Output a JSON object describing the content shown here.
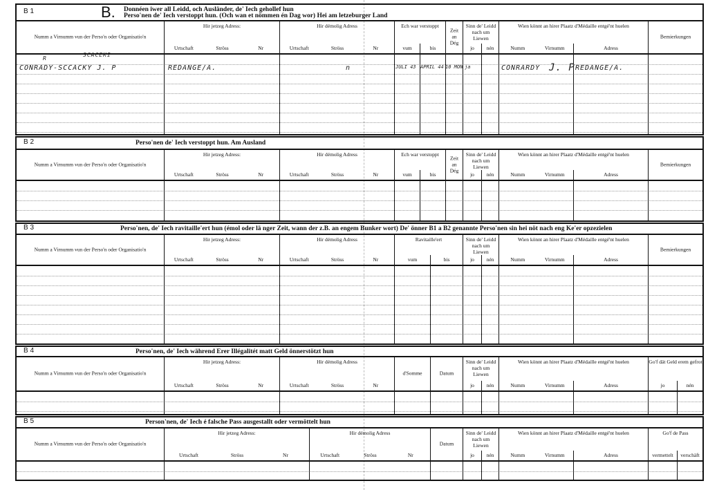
{
  "form": {
    "letter": "B."
  },
  "sections": [
    {
      "id": "B 1",
      "title_lines": [
        "Donnéen iwer all Leidd, och Ausländer, de' Iech gehollef hun",
        "Perso'nen de' Iech verstoppt hun. (Och wan et nömmen én Dag wor)    Hei am letzeburger Land"
      ],
      "columns": [
        {
          "label": "Numm a Virnumm vun der Perso'n oder Organisatio'n",
          "sub": []
        },
        {
          "label": "Hir jetzeg Adress:",
          "sub": [
            "Urtschaft",
            "Ströss",
            "Nr"
          ]
        },
        {
          "label": "Hir démolig Adress",
          "sub": [
            "Urtschaft",
            "Ströss",
            "Nr"
          ]
        },
        {
          "label": "Ech war verstoppt",
          "sub": [
            "vum",
            "bis"
          ]
        },
        {
          "label": "Zeit an Dég",
          "sub": []
        },
        {
          "label": "Sinn de' Leidd nach um Liewen",
          "sub": [
            "jo",
            "nén"
          ]
        },
        {
          "label": "Wien könnt an hirer Plaatz d'Médaille entgé'nt huelen",
          "sub": [
            "Numm",
            "Virnumm",
            "Adress"
          ]
        },
        {
          "label": "Bemierkungen",
          "sub": []
        }
      ],
      "entries": {
        "name": "CONRADY-SCCACKY J. P",
        "name_correction_letter": "R",
        "name_correction": "SCACEKI",
        "current_town": "REDANGE/A.",
        "former_address": "n",
        "hidden_from": "JULI 43",
        "hidden_until": "APRIL 44",
        "duration": "10 MON",
        "alive_yes": "ja",
        "medal_surname": "CONRARDY",
        "medal_firstname": "J. P",
        "medal_address": "REDANGE/A."
      }
    },
    {
      "id": "B 2",
      "title_lines": [
        "Perso'nen de' Iech verstoppt hun.                    Am Ausland"
      ],
      "columns": [
        {
          "label": "Numm a Virnumm vun der Perso'n oder Organisatio'n",
          "sub": []
        },
        {
          "label": "Hir jetzeg Adress:",
          "sub": [
            "Urtschaft",
            "Ströss",
            "Nr"
          ]
        },
        {
          "label": "Hir démolig Adress",
          "sub": [
            "Urtschaft",
            "Ströss",
            "Nr"
          ]
        },
        {
          "label": "Ech war verstoppt",
          "sub": [
            "vum",
            "bis"
          ]
        },
        {
          "label": "Zeit an Dég",
          "sub": []
        },
        {
          "label": "Sinn de' Leidd nach um Liewen",
          "sub": [
            "jo",
            "nén"
          ]
        },
        {
          "label": "Wien könnt an hirer Plaatz d'Médaille entgé'nt huelen",
          "sub": [
            "Numm",
            "Virnumm",
            "Adress"
          ]
        },
        {
          "label": "Bemierkungen",
          "sub": []
        }
      ]
    },
    {
      "id": "B 3",
      "title_lines": [
        "Perso'nen, de' Iech ravitaille'ert hun (émol oder lä nger Zeit, wann der z.B. an engem Bunker wort)   De' önner B1 a B2 genannte Perso'nen sin hei nöt nach eng Ke'er opzezielen"
      ],
      "columns": [
        {
          "label": "Numm a Virnumm vun der Perso'n oder Organisatio'n",
          "sub": []
        },
        {
          "label": "Hir jetzeg Adress:",
          "sub": [
            "Urtschaft",
            "Ströss",
            "Nr"
          ]
        },
        {
          "label": "Hir démolig Adress",
          "sub": [
            "Urtschaft",
            "Ströss",
            "Nr"
          ]
        },
        {
          "label": "Ravitaille'ert",
          "sub": [
            "vum",
            "bis"
          ]
        },
        {
          "label": "Sinn de' Leidd nach um Liewen",
          "sub": [
            "jo",
            "nén"
          ]
        },
        {
          "label": "Wien könnt an hirer Plaatz d'Médaille entgé'nt huelen",
          "sub": [
            "Numm",
            "Virnumm",
            "Adress"
          ]
        },
        {
          "label": "Bemierkungen",
          "sub": []
        }
      ]
    },
    {
      "id": "B 4",
      "title_lines": [
        "Perso'nen, de' Iech während Erer Illégalitét matt Geld önnerstötzt hun"
      ],
      "columns": [
        {
          "label": "Numm a Virnumm vun der Perso'n oder Organisatio'n",
          "sub": []
        },
        {
          "label": "Hir jetzeg Adress:",
          "sub": [
            "Urtschaft",
            "Ströss",
            "Nr"
          ]
        },
        {
          "label": "Hir démolig Adress",
          "sub": [
            "Urtschaft",
            "Ströss",
            "Nr"
          ]
        },
        {
          "label": "d'Somme",
          "sub": []
        },
        {
          "label": "Datum",
          "sub": []
        },
        {
          "label": "Sinn de' Leidd nach um Liewen",
          "sub": [
            "jo",
            "nén"
          ]
        },
        {
          "label": "Wien könnt an hirer Plaatz d'Médaille entgé'nt huelen",
          "sub": [
            "Numm",
            "Virnumm",
            "Adress"
          ]
        },
        {
          "label": "Go'f dät Geld erem gefrot",
          "sub": [
            "jo",
            "nén"
          ]
        }
      ]
    },
    {
      "id": "B 5",
      "title_lines": [
        "Person'nen, de' Iech é falsche Pass ausgestallt oder  vermöttelt hun"
      ],
      "columns": [
        {
          "label": "Numm a Virnumm vun der Perso'n oder Organisatio'n",
          "sub": []
        },
        {
          "label": "Hir jetzeg Adress:",
          "sub": [
            "Urtschaft",
            "Ströss",
            "Nr"
          ]
        },
        {
          "label": "Hir démolig Adress",
          "sub": [
            "Urtschaft",
            "Ströss",
            "Nr"
          ]
        },
        {
          "label": "Datum",
          "sub": []
        },
        {
          "label": "Sinn de' Leidd nach um Liewen",
          "sub": [
            "jo",
            "nén"
          ]
        },
        {
          "label": "Wien könnt an hirer Plaatz d'Médaille entgé'nt huelen",
          "sub": [
            "Numm",
            "Virnumm",
            "Adress"
          ]
        },
        {
          "label": "Go'f de Pass",
          "sub": [
            "vermettelt",
            "verschäft"
          ]
        }
      ]
    }
  ]
}
